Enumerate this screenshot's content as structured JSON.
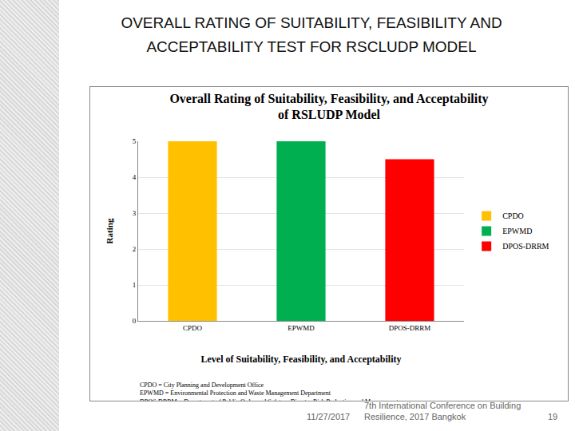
{
  "slide": {
    "title": "OVERALL RATING OF SUITABILITY, FEASIBILITY AND ACCEPTABILITY TEST FOR RSCLUDP MODEL",
    "date": "11/27/2017",
    "footer": "7th International Conference on Building Resilience, 2017 Bangkok",
    "page": "19"
  },
  "chart_data": {
    "type": "bar",
    "title": "Overall Rating of Suitability, Feasibility, and Acceptability of RSLUDP Model",
    "x_label": "Level of Suitability, Feasibility, and Acceptability",
    "y_label": "Rating",
    "categories": [
      "CPDO",
      "EPWMD",
      "DPOS-DRRM"
    ],
    "values": [
      5,
      5,
      4.5
    ],
    "colors": [
      "#ffc000",
      "#00b050",
      "#ff0000"
    ],
    "ylim": [
      0,
      5
    ],
    "yticks": [
      0,
      1,
      2,
      3,
      4,
      5
    ],
    "grid": true,
    "legend": "right",
    "annotations": [
      "CPDO = City Planning and Development Office",
      "EPWMD = Environmental Protection and Waste Management Department",
      "DPOS-DRRM = Department of Public Order and Safety – Disaster Risk Reduction and Management..."
    ]
  }
}
